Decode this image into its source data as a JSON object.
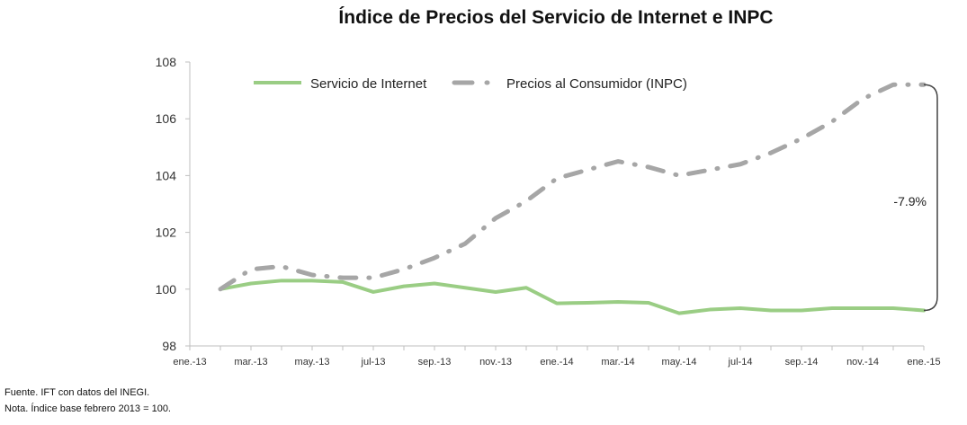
{
  "chart_data": {
    "type": "line",
    "title": "Índice de Precios del Servicio de Internet e INPC",
    "xlabel": "",
    "ylabel": "",
    "ylim": [
      98,
      108
    ],
    "yticks": [
      "98",
      "100",
      "102",
      "104",
      "106",
      "108"
    ],
    "xtick_labels": [
      "ene.-13",
      "mar.-13",
      "may.-13",
      "jul-13",
      "sep.-13",
      "nov.-13",
      "ene.-14",
      "mar.-14",
      "may.-14",
      "jul-14",
      "sep.-14",
      "nov.-14",
      "ene.-15"
    ],
    "x": [
      "feb.-13",
      "mar.-13",
      "abr.-13",
      "may.-13",
      "jun.-13",
      "jul-13",
      "ago.-13",
      "sep.-13",
      "oct.-13",
      "nov.-13",
      "dic.-13",
      "ene.-14",
      "feb.-14",
      "mar.-14",
      "abr.-14",
      "may.-14",
      "jun.-14",
      "jul-14",
      "ago.-14",
      "sep.-14",
      "oct.-14",
      "nov.-14",
      "dic.-14",
      "ene.-15"
    ],
    "series": [
      {
        "name": "Servicio de Internet",
        "color": "#9acd84",
        "style": "solid",
        "values": [
          100.0,
          100.2,
          100.3,
          100.3,
          100.25,
          99.9,
          100.1,
          100.2,
          100.05,
          99.9,
          100.05,
          99.5,
          99.52,
          99.55,
          99.52,
          99.15,
          99.28,
          99.33,
          99.25,
          99.25,
          99.33,
          99.33,
          99.33,
          99.25
        ]
      },
      {
        "name": "Precios al Consumidor (INPC)",
        "color": "#a6a6a6",
        "style": "dash-dot",
        "values": [
          100.0,
          100.7,
          100.8,
          100.5,
          100.4,
          100.4,
          100.7,
          101.1,
          101.6,
          102.5,
          103.1,
          103.9,
          104.2,
          104.5,
          104.3,
          104.0,
          104.2,
          104.4,
          104.8,
          105.3,
          105.9,
          106.7,
          107.2,
          107.2
        ]
      }
    ],
    "legend": "top-left inside",
    "annotation": "-7.9%",
    "grid": false
  },
  "footer": {
    "source": "Fuente. IFT con datos del INEGI.",
    "note": "Nota. Índice base febrero 2013 = 100."
  }
}
